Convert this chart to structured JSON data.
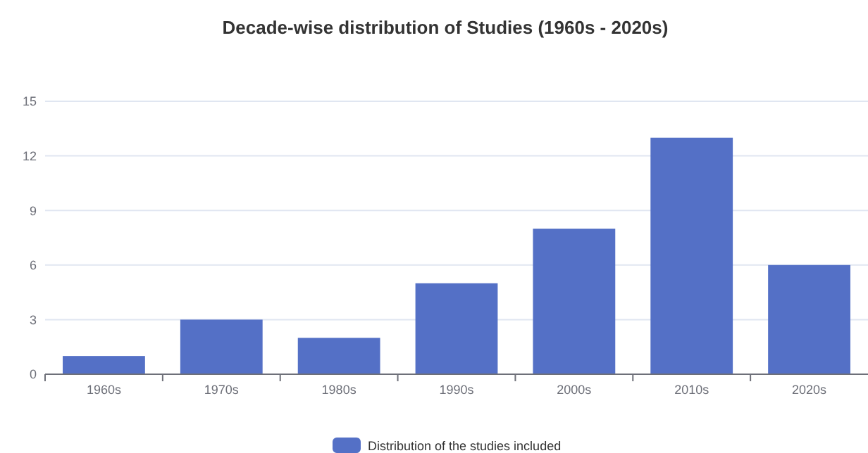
{
  "chart_data": {
    "type": "bar",
    "title": "Decade-wise distribution of Studies (1960s - 2020s)",
    "categories": [
      "1960s",
      "1970s",
      "1980s",
      "1990s",
      "2000s",
      "2010s",
      "2020s"
    ],
    "series": [
      {
        "name": "Distribution of the studies included",
        "color": "#5470c6",
        "values": [
          1,
          3,
          2,
          5,
          8,
          13,
          6
        ]
      }
    ],
    "ylim": [
      0,
      15
    ],
    "yticks": [
      0,
      3,
      6,
      9,
      12,
      15
    ],
    "grid": "y",
    "legend": "bottom"
  }
}
